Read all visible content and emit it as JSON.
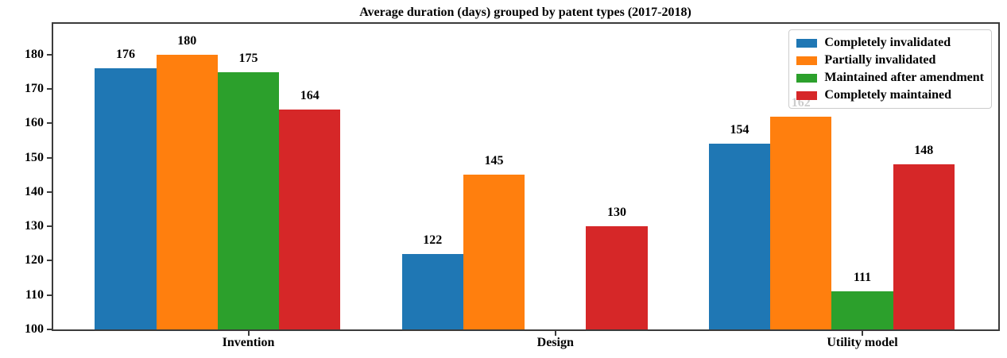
{
  "chart_data": {
    "type": "bar",
    "title": "Average duration (days) grouped by patent types (2017-2018)",
    "xlabel": "",
    "ylabel": "",
    "categories": [
      "Invention",
      "Design",
      "Utility model"
    ],
    "series": [
      {
        "name": "Completely invalidated",
        "color": "#1f77b4",
        "values": [
          176,
          122,
          154
        ]
      },
      {
        "name": "Partially invalidated",
        "color": "#ff7f0e",
        "values": [
          180,
          145,
          162
        ]
      },
      {
        "name": "Maintained after amendment",
        "color": "#2ca02c",
        "values": [
          175,
          null,
          111
        ]
      },
      {
        "name": "Completely maintained",
        "color": "#d62728",
        "values": [
          164,
          130,
          148
        ]
      }
    ],
    "yticks": [
      100,
      110,
      120,
      130,
      140,
      150,
      160,
      170,
      180
    ],
    "ylim": [
      100,
      189
    ],
    "grid": false,
    "bar_value_labels": true,
    "legend_position": "upper right"
  }
}
